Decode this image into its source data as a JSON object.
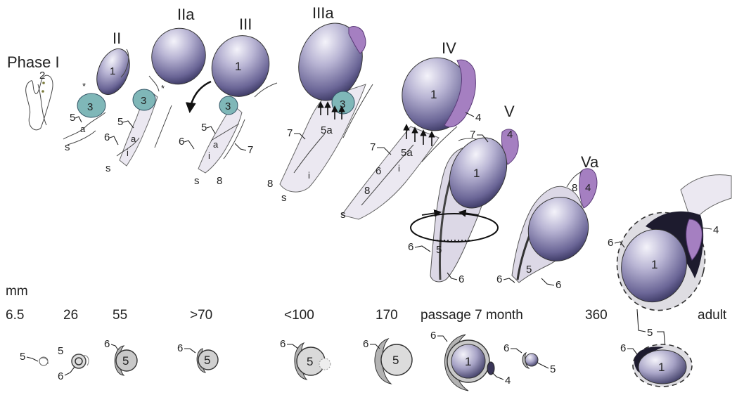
{
  "stages": [
    {
      "id": "I",
      "label": "Phase I"
    },
    {
      "id": "II",
      "label": "II"
    },
    {
      "id": "IIa",
      "label": "IIa"
    },
    {
      "id": "III",
      "label": "III"
    },
    {
      "id": "IIIa",
      "label": "IIIa"
    },
    {
      "id": "IV",
      "label": "IV"
    },
    {
      "id": "V",
      "label": "V"
    },
    {
      "id": "Va",
      "label": "Va"
    }
  ],
  "labels": {
    "n1": "1",
    "n2": "2",
    "n3": "3",
    "n4": "4",
    "n5": "5",
    "n5a": "5a",
    "n6": "6",
    "n7": "7",
    "n8": "8",
    "a": "a",
    "i": "i",
    "s": "s",
    "star": "*"
  },
  "size_row": {
    "unit": "mm",
    "values": [
      "6.5",
      "26",
      "55",
      ">70",
      "<100",
      "170",
      "passage 7 month",
      "360",
      "adult"
    ]
  },
  "colors": {
    "follicle_dark": "#2a2850",
    "follicle_mid": "#6a6596",
    "follicle_light": "#f4f3fa",
    "tissue_3": "#7fb7b8",
    "tissue_4": "#a57fc1",
    "sheath": "#dcd8e6"
  }
}
